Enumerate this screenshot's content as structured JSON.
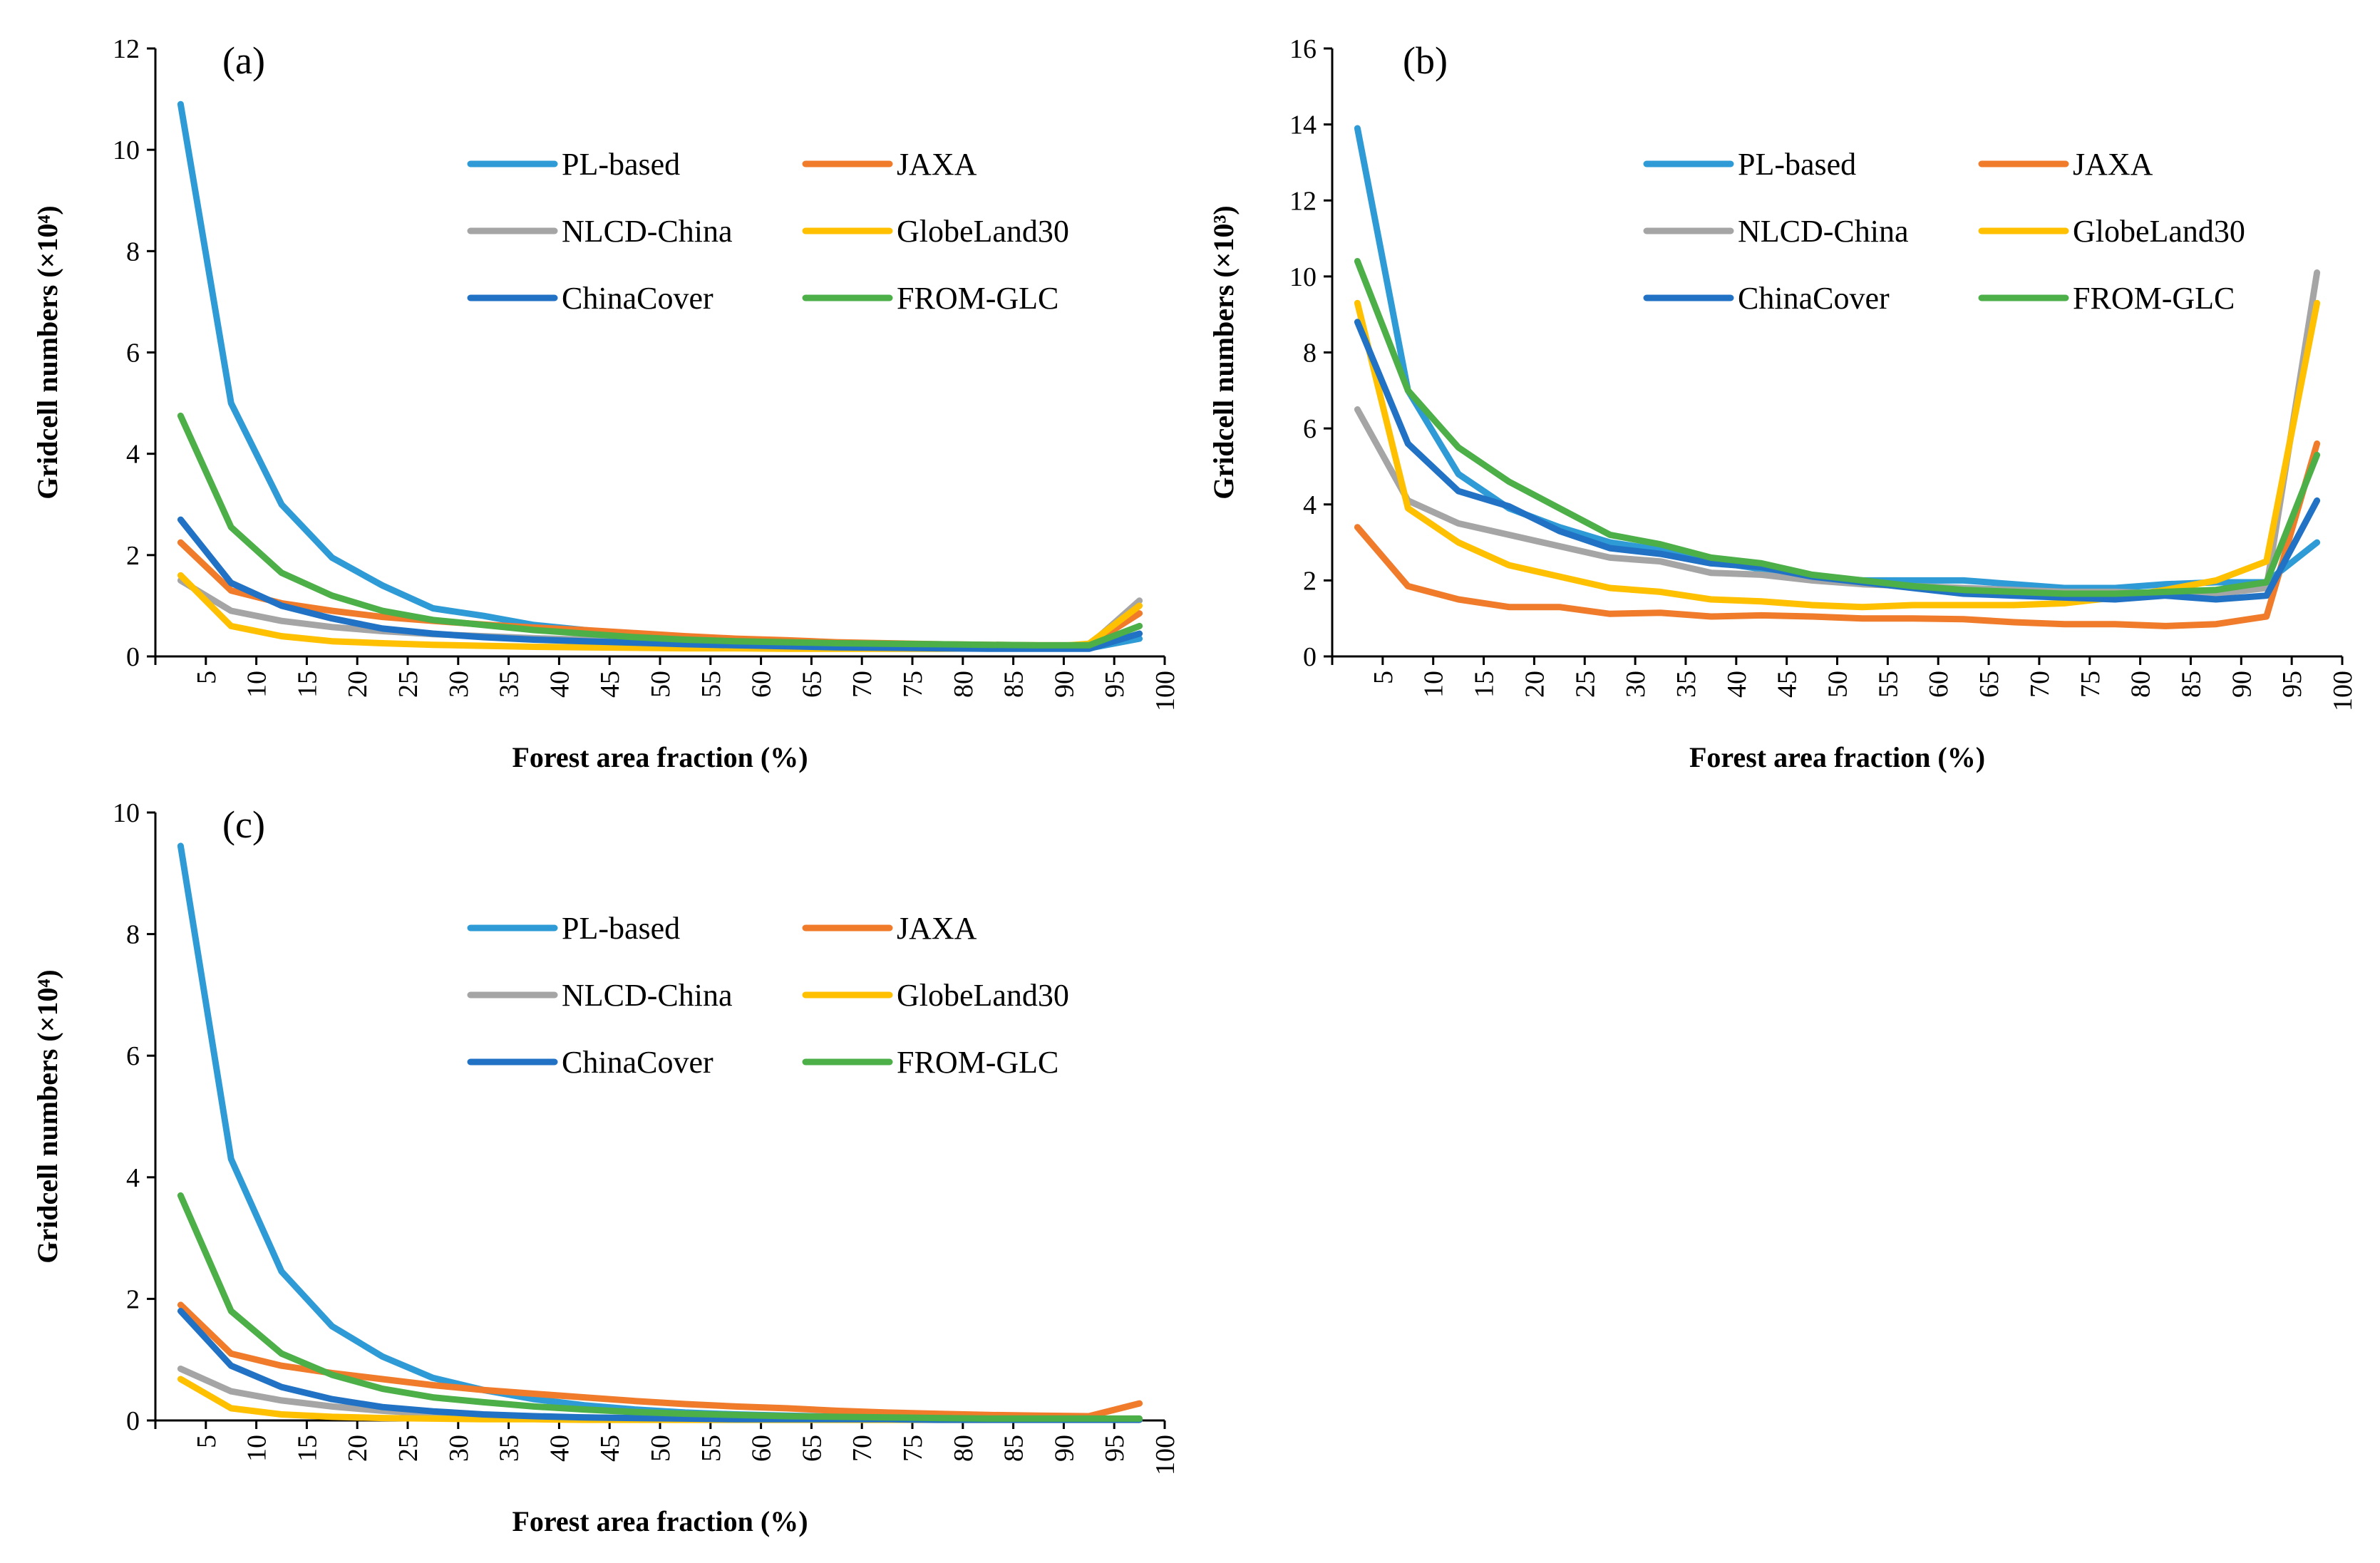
{
  "chart_data": [
    {
      "type": "line",
      "panel": "(a)",
      "xlabel": "Forest area fraction (%)",
      "ylabel": "Gridcell numbers (×10⁴)",
      "ylim": [
        0,
        12
      ],
      "yticks": [
        0,
        2,
        4,
        6,
        8,
        10,
        12
      ],
      "xticks": [
        5,
        10,
        15,
        20,
        25,
        30,
        35,
        40,
        45,
        50,
        55,
        60,
        65,
        70,
        75,
        80,
        85,
        90,
        95,
        100
      ],
      "x": [
        2.5,
        7.5,
        12.5,
        17.5,
        22.5,
        27.5,
        32.5,
        37.5,
        42.5,
        47.5,
        52.5,
        57.5,
        62.5,
        67.5,
        72.5,
        77.5,
        82.5,
        87.5,
        92.5,
        97.5
      ],
      "legend": "top-right",
      "series": [
        {
          "name": "PL-based",
          "color": "#2E9BD6",
          "values": [
            10.9,
            5.0,
            3.0,
            1.95,
            1.4,
            0.95,
            0.8,
            0.62,
            0.52,
            0.42,
            0.35,
            0.3,
            0.26,
            0.22,
            0.2,
            0.18,
            0.17,
            0.16,
            0.16,
            0.35
          ]
        },
        {
          "name": "JAXA",
          "color": "#F07B2B",
          "values": [
            2.25,
            1.3,
            1.05,
            0.9,
            0.78,
            0.7,
            0.63,
            0.57,
            0.52,
            0.46,
            0.4,
            0.35,
            0.32,
            0.28,
            0.26,
            0.24,
            0.23,
            0.22,
            0.22,
            0.85
          ]
        },
        {
          "name": "NLCD-China",
          "color": "#A5A5A5",
          "values": [
            1.5,
            0.9,
            0.7,
            0.58,
            0.5,
            0.44,
            0.4,
            0.36,
            0.33,
            0.3,
            0.28,
            0.26,
            0.24,
            0.22,
            0.21,
            0.2,
            0.2,
            0.2,
            0.22,
            1.1
          ]
        },
        {
          "name": "GlobeLand30",
          "color": "#FFC000",
          "values": [
            1.6,
            0.6,
            0.4,
            0.3,
            0.26,
            0.23,
            0.21,
            0.19,
            0.18,
            0.17,
            0.16,
            0.16,
            0.15,
            0.15,
            0.15,
            0.15,
            0.16,
            0.17,
            0.25,
            1.0
          ]
        },
        {
          "name": "ChinaCover",
          "color": "#2172C4",
          "values": [
            2.7,
            1.45,
            1.0,
            0.75,
            0.55,
            0.45,
            0.38,
            0.33,
            0.3,
            0.27,
            0.24,
            0.22,
            0.2,
            0.18,
            0.17,
            0.16,
            0.15,
            0.15,
            0.15,
            0.45
          ]
        },
        {
          "name": "FROM-GLC",
          "color": "#4CAF48",
          "values": [
            4.75,
            2.55,
            1.65,
            1.2,
            0.9,
            0.72,
            0.62,
            0.52,
            0.45,
            0.38,
            0.33,
            0.3,
            0.28,
            0.26,
            0.25,
            0.24,
            0.23,
            0.22,
            0.22,
            0.6
          ]
        }
      ]
    },
    {
      "type": "line",
      "panel": "(b)",
      "xlabel": "Forest area fraction (%)",
      "ylabel": "Gridcell numbers (×10³)",
      "ylim": [
        0,
        16
      ],
      "yticks": [
        0,
        2,
        4,
        6,
        8,
        10,
        12,
        14,
        16
      ],
      "xticks": [
        5,
        10,
        15,
        20,
        25,
        30,
        35,
        40,
        45,
        50,
        55,
        60,
        65,
        70,
        75,
        80,
        85,
        90,
        95,
        100
      ],
      "x": [
        2.5,
        7.5,
        12.5,
        17.5,
        22.5,
        27.5,
        32.5,
        37.5,
        42.5,
        47.5,
        52.5,
        57.5,
        62.5,
        67.5,
        72.5,
        77.5,
        82.5,
        87.5,
        92.5,
        97.5
      ],
      "legend": "top-right",
      "series": [
        {
          "name": "PL-based",
          "color": "#2E9BD6",
          "values": [
            13.9,
            7.0,
            4.8,
            3.9,
            3.4,
            3.0,
            2.8,
            2.5,
            2.3,
            2.1,
            2.0,
            2.0,
            2.0,
            1.9,
            1.8,
            1.8,
            1.9,
            1.95,
            1.95,
            3.0
          ]
        },
        {
          "name": "JAXA",
          "color": "#F07B2B",
          "values": [
            3.4,
            1.85,
            1.5,
            1.3,
            1.3,
            1.12,
            1.15,
            1.05,
            1.08,
            1.05,
            1.0,
            1.0,
            0.98,
            0.9,
            0.85,
            0.85,
            0.8,
            0.85,
            1.05,
            5.6
          ]
        },
        {
          "name": "NLCD-China",
          "color": "#A5A5A5",
          "values": [
            6.5,
            4.1,
            3.5,
            3.2,
            2.9,
            2.6,
            2.5,
            2.2,
            2.15,
            2.0,
            1.9,
            1.85,
            1.8,
            1.75,
            1.7,
            1.7,
            1.65,
            1.65,
            1.8,
            10.1
          ]
        },
        {
          "name": "GlobeLand30",
          "color": "#FFC000",
          "values": [
            9.3,
            3.9,
            3.0,
            2.4,
            2.1,
            1.8,
            1.7,
            1.5,
            1.45,
            1.35,
            1.3,
            1.35,
            1.35,
            1.35,
            1.4,
            1.55,
            1.75,
            2.0,
            2.5,
            9.3
          ]
        },
        {
          "name": "ChinaCover",
          "color": "#2172C4",
          "values": [
            8.8,
            5.6,
            4.35,
            3.95,
            3.3,
            2.85,
            2.7,
            2.45,
            2.35,
            2.1,
            1.95,
            1.8,
            1.65,
            1.6,
            1.55,
            1.5,
            1.6,
            1.5,
            1.6,
            4.1
          ]
        },
        {
          "name": "FROM-GLC",
          "color": "#4CAF48",
          "values": [
            10.4,
            7.0,
            5.5,
            4.6,
            3.9,
            3.2,
            2.95,
            2.6,
            2.45,
            2.15,
            2.0,
            1.85,
            1.75,
            1.7,
            1.65,
            1.65,
            1.7,
            1.75,
            1.95,
            5.3
          ]
        }
      ]
    },
    {
      "type": "line",
      "panel": "(c)",
      "xlabel": "Forest area fraction (%)",
      "ylabel": "Gridcell numbers (×10⁴)",
      "ylim": [
        0,
        10
      ],
      "yticks": [
        0,
        2,
        4,
        6,
        8,
        10
      ],
      "xticks": [
        5,
        10,
        15,
        20,
        25,
        30,
        35,
        40,
        45,
        50,
        55,
        60,
        65,
        70,
        75,
        80,
        85,
        90,
        95,
        100
      ],
      "x": [
        2.5,
        7.5,
        12.5,
        17.5,
        22.5,
        27.5,
        32.5,
        37.5,
        42.5,
        47.5,
        52.5,
        57.5,
        62.5,
        67.5,
        72.5,
        77.5,
        82.5,
        87.5,
        92.5,
        97.5
      ],
      "legend": "top-right",
      "series": [
        {
          "name": "PL-based",
          "color": "#2E9BD6",
          "values": [
            9.45,
            4.3,
            2.45,
            1.55,
            1.05,
            0.7,
            0.5,
            0.35,
            0.25,
            0.18,
            0.13,
            0.1,
            0.08,
            0.06,
            0.05,
            0.04,
            0.03,
            0.03,
            0.02,
            0.02
          ]
        },
        {
          "name": "JAXA",
          "color": "#F07B2B",
          "values": [
            1.9,
            1.1,
            0.9,
            0.78,
            0.68,
            0.58,
            0.5,
            0.44,
            0.38,
            0.32,
            0.27,
            0.23,
            0.2,
            0.16,
            0.13,
            0.11,
            0.09,
            0.08,
            0.07,
            0.28
          ]
        },
        {
          "name": "NLCD-China",
          "color": "#A5A5A5",
          "values": [
            0.85,
            0.48,
            0.33,
            0.23,
            0.16,
            0.11,
            0.08,
            0.06,
            0.05,
            0.04,
            0.03,
            0.03,
            0.02,
            0.02,
            0.02,
            0.02,
            0.02,
            0.02,
            0.02,
            0.02
          ]
        },
        {
          "name": "GlobeLand30",
          "color": "#FFC000",
          "values": [
            0.68,
            0.2,
            0.1,
            0.06,
            0.04,
            0.03,
            0.02,
            0.02,
            0.01,
            0.01,
            0.01,
            0.01,
            0.01,
            0.01,
            0.01,
            0.01,
            0.01,
            0.01,
            0.01,
            0.01
          ]
        },
        {
          "name": "ChinaCover",
          "color": "#2172C4",
          "values": [
            1.8,
            0.9,
            0.55,
            0.35,
            0.22,
            0.15,
            0.1,
            0.07,
            0.05,
            0.04,
            0.03,
            0.02,
            0.02,
            0.02,
            0.02,
            0.01,
            0.01,
            0.01,
            0.01,
            0.01
          ]
        },
        {
          "name": "FROM-GLC",
          "color": "#4CAF48",
          "values": [
            3.7,
            1.8,
            1.1,
            0.75,
            0.52,
            0.38,
            0.3,
            0.23,
            0.18,
            0.14,
            0.11,
            0.09,
            0.07,
            0.06,
            0.05,
            0.04,
            0.03,
            0.03,
            0.03,
            0.03
          ]
        }
      ]
    }
  ]
}
